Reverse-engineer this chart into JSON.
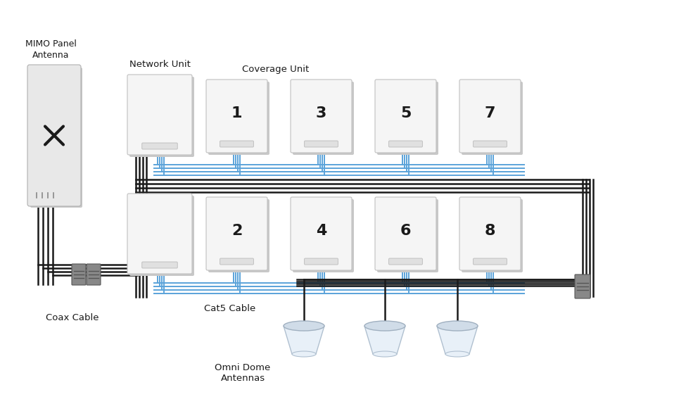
{
  "bg_color": "#ffffff",
  "mimo_label": "MIMO Panel\nAntenna",
  "network_unit_label": "Network Unit",
  "coverage_unit_label": "Coverage Unit",
  "coax_label": "Coax Cable",
  "cat5_label": "Cat5 Cable",
  "omni_label": "Omni Dome\nAntennas",
  "black_color": "#1a1a1a",
  "blue_color": "#5ba3d9",
  "light_gray": "#efefef",
  "mid_gray": "#d8d8d8",
  "dark_gray": "#aaaaaa",
  "white_device": "#f5f5f5",
  "shadow_color": "#c8c8c8"
}
